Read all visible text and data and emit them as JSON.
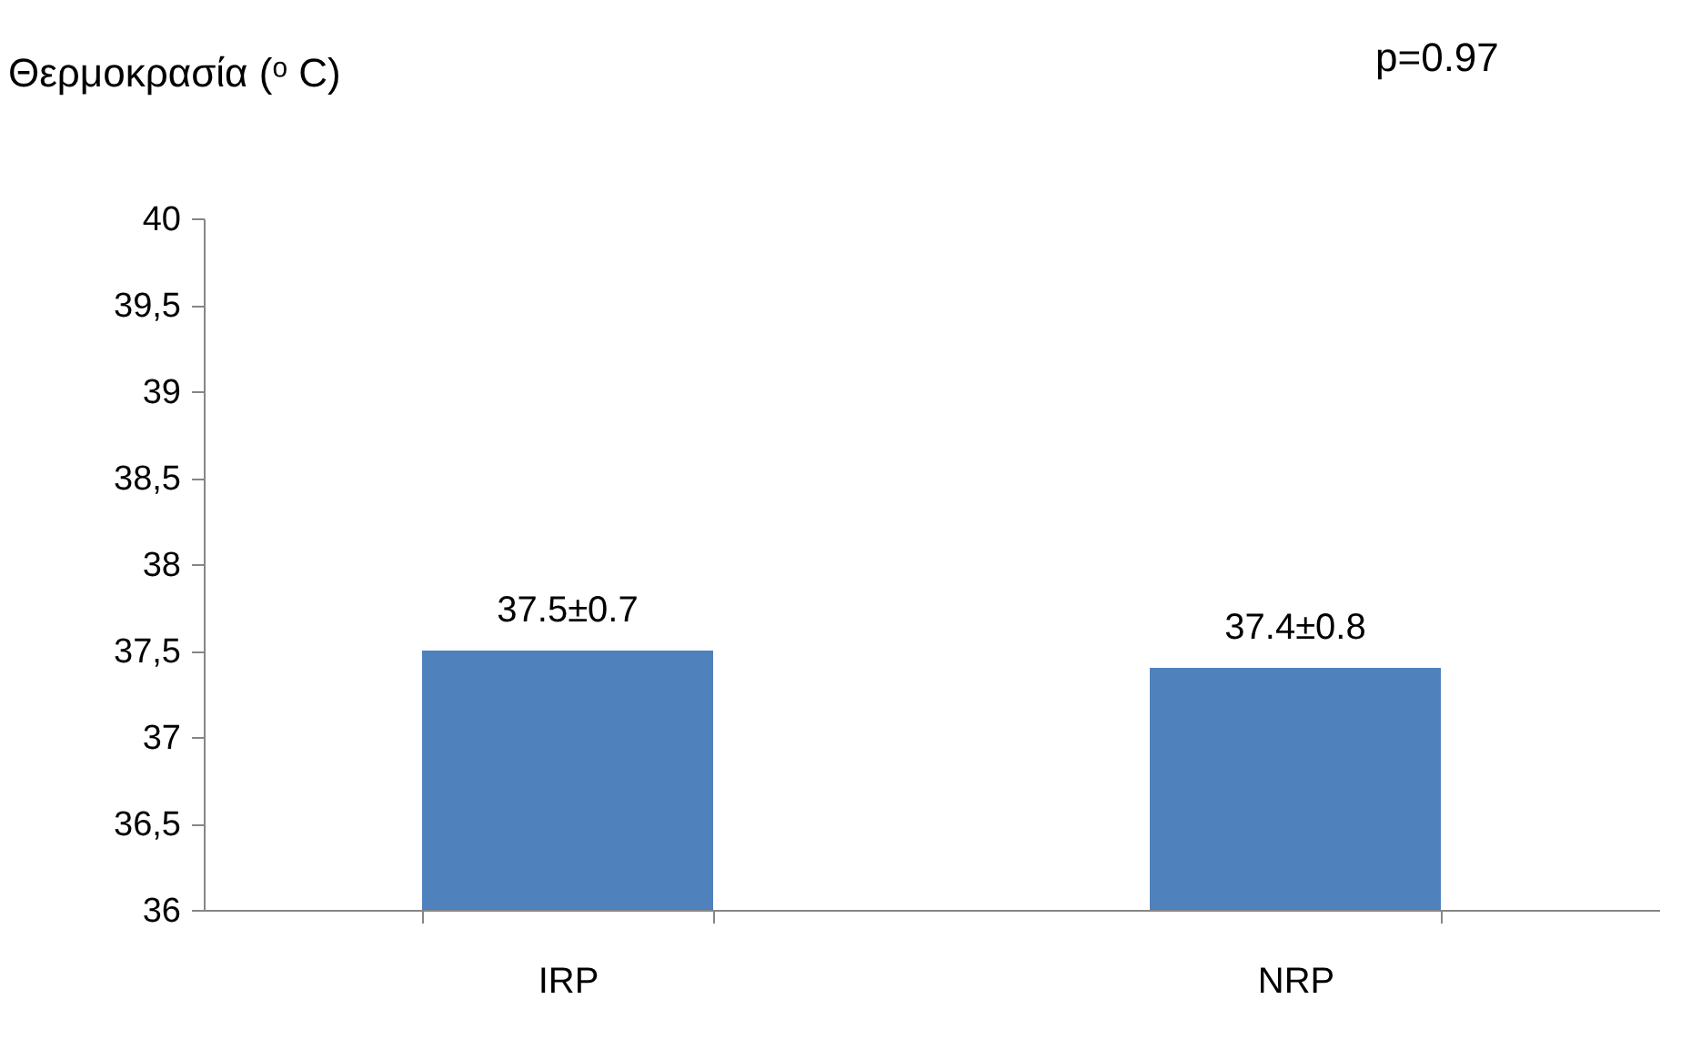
{
  "chart_data": {
    "type": "bar",
    "ylabel": "Θερμοκρασία (ᵒ C)",
    "categories": [
      "IRP",
      "NRP"
    ],
    "values": [
      37.5,
      37.4
    ],
    "value_labels": [
      "37.5±0.7",
      "37.4±0.8"
    ],
    "color": "#4f81bd",
    "ylim": [
      36,
      40
    ],
    "yticks": [
      36,
      {
        "value": 36.5,
        "label": "36,5"
      },
      37,
      {
        "value": 37.5,
        "label": "37,5"
      },
      38,
      {
        "value": 38.5,
        "label": "38,5"
      },
      39,
      {
        "value": 39.5,
        "label": "39,5"
      },
      40
    ],
    "annotations": [
      "p=0.97"
    ],
    "grid": false
  }
}
